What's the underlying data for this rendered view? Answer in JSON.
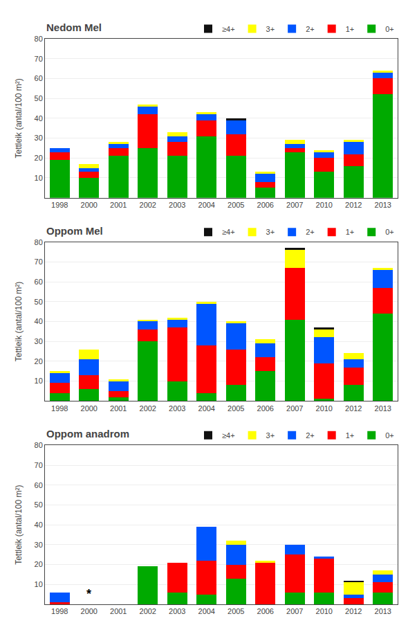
{
  "chart_data": [
    {
      "type": "bar",
      "stacked": true,
      "title": "Nedom Mel",
      "ylabel": "Tettleik (antal/100 m²)",
      "categories": [
        "1998",
        "2000",
        "2001",
        "2002",
        "2003",
        "2004",
        "2005",
        "2006",
        "2007",
        "2010",
        "2012",
        "2013"
      ],
      "series": [
        {
          "name": "0+",
          "color": "#00AA00",
          "values": [
            19,
            10,
            21,
            25,
            21,
            31,
            21,
            5,
            23,
            13,
            16,
            52
          ]
        },
        {
          "name": "1+",
          "color": "#FF0000",
          "values": [
            4,
            3,
            4,
            17,
            7,
            8,
            11,
            3,
            2,
            7,
            6,
            8
          ]
        },
        {
          "name": "2+",
          "color": "#0055FF",
          "values": [
            2,
            2,
            2,
            4,
            3,
            3,
            7,
            4,
            2,
            3,
            6,
            3
          ]
        },
        {
          "name": "3+",
          "color": "#FFFF00",
          "values": [
            0,
            2,
            1,
            1,
            2,
            1,
            0,
            1,
            2,
            1,
            1,
            1
          ]
        },
        {
          "name": "≥4+",
          "color": "#111111",
          "values": [
            0,
            0,
            0,
            0,
            0,
            0,
            1,
            0,
            0,
            0,
            0,
            0
          ]
        }
      ],
      "ylim": [
        0,
        80
      ],
      "yticks": [
        10,
        20,
        30,
        40,
        50,
        60,
        70,
        80
      ],
      "grid": true,
      "legend": "top"
    },
    {
      "type": "bar",
      "stacked": true,
      "title": "Oppom Mel",
      "ylabel": "Tettleik (antal/100 m²)",
      "categories": [
        "1998",
        "2000",
        "2001",
        "2002",
        "2003",
        "2004",
        "2005",
        "2006",
        "2007",
        "2010",
        "2012",
        "2013"
      ],
      "series": [
        {
          "name": "0+",
          "color": "#00AA00",
          "values": [
            4,
            6,
            2,
            30,
            10,
            4,
            8,
            15,
            41,
            1,
            8,
            44
          ]
        },
        {
          "name": "1+",
          "color": "#FF0000",
          "values": [
            5,
            7,
            3,
            6,
            27,
            24,
            18,
            7,
            26,
            18,
            9,
            13
          ]
        },
        {
          "name": "2+",
          "color": "#0055FF",
          "values": [
            5,
            8,
            5,
            4,
            4,
            21,
            13,
            7,
            0,
            13,
            4,
            9
          ]
        },
        {
          "name": "3+",
          "color": "#FFFF00",
          "values": [
            1,
            5,
            1,
            1,
            1,
            1,
            1,
            2,
            9,
            4,
            3,
            1
          ]
        },
        {
          "name": "≥4+",
          "color": "#111111",
          "values": [
            0,
            0,
            0,
            0,
            0,
            0,
            0,
            0,
            1,
            1,
            0,
            0
          ]
        }
      ],
      "ylim": [
        0,
        80
      ],
      "yticks": [
        10,
        20,
        30,
        40,
        50,
        60,
        70,
        80
      ],
      "grid": true,
      "legend": "top"
    },
    {
      "type": "bar",
      "stacked": true,
      "title": "Oppom anadrom",
      "ylabel": "Tettleik (antal/100 m²)",
      "categories": [
        "1998",
        "2000",
        "2001",
        "2002",
        "2003",
        "2004",
        "2005",
        "2006",
        "2007",
        "2010",
        "2012",
        "2013"
      ],
      "series": [
        {
          "name": "0+",
          "color": "#00AA00",
          "values": [
            0,
            0,
            0,
            19,
            6,
            5,
            13,
            0,
            6,
            6,
            0,
            6
          ]
        },
        {
          "name": "1+",
          "color": "#FF0000",
          "values": [
            1,
            0,
            0,
            0,
            15,
            17,
            7,
            21,
            19,
            17,
            3,
            5
          ]
        },
        {
          "name": "2+",
          "color": "#0055FF",
          "values": [
            5,
            0,
            0,
            0,
            0,
            17,
            10,
            0,
            5,
            1,
            2,
            4
          ]
        },
        {
          "name": "3+",
          "color": "#FFFF00",
          "values": [
            0,
            0,
            0,
            0,
            0,
            0,
            2,
            1,
            0,
            0,
            6,
            2
          ]
        },
        {
          "name": "≥4+",
          "color": "#111111",
          "values": [
            0,
            0,
            0,
            0,
            0,
            0,
            0,
            0,
            0,
            0,
            1,
            0
          ]
        }
      ],
      "annotations": [
        {
          "text": "*",
          "x": "2000",
          "y": 1
        }
      ],
      "ylim": [
        0,
        80
      ],
      "yticks": [
        10,
        20,
        30,
        40,
        50,
        60,
        70,
        80
      ],
      "grid": true,
      "legend": "top"
    }
  ]
}
